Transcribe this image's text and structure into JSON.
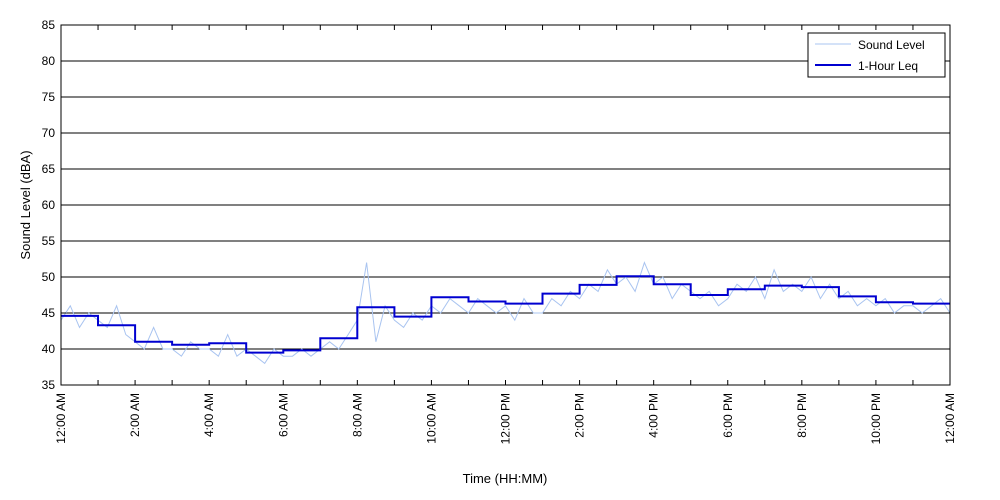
{
  "chart_data": {
    "type": "line",
    "xlabel": "Time (HH:MM)",
    "ylabel": "Sound Level (dBA)",
    "ylim": [
      35,
      85
    ],
    "yticks": [
      35,
      40,
      45,
      50,
      55,
      60,
      65,
      70,
      75,
      80,
      85
    ],
    "xlim_hours": [
      0,
      24
    ],
    "xticks": [
      {
        "hour": 0,
        "label": "12:00 AM"
      },
      {
        "hour": 2,
        "label": "2:00 AM"
      },
      {
        "hour": 4,
        "label": "4:00 AM"
      },
      {
        "hour": 6,
        "label": "6:00 AM"
      },
      {
        "hour": 8,
        "label": "8:00 AM"
      },
      {
        "hour": 10,
        "label": "10:00 AM"
      },
      {
        "hour": 12,
        "label": "12:00 PM"
      },
      {
        "hour": 14,
        "label": "2:00 PM"
      },
      {
        "hour": 16,
        "label": "4:00 PM"
      },
      {
        "hour": 18,
        "label": "6:00 PM"
      },
      {
        "hour": 20,
        "label": "8:00 PM"
      },
      {
        "hour": 22,
        "label": "10:00 PM"
      },
      {
        "hour": 24,
        "label": "12:00 AM"
      }
    ],
    "grid": "horizontal",
    "legend_position": "top-right",
    "series": [
      {
        "name": "Sound Level",
        "color": "#a9c4f0",
        "style": "thin",
        "x_hours": [
          0.0,
          0.25,
          0.5,
          0.75,
          1.0,
          1.25,
          1.5,
          1.75,
          2.0,
          2.25,
          2.5,
          2.75,
          3.0,
          3.25,
          3.5,
          3.75,
          4.0,
          4.25,
          4.5,
          4.75,
          5.0,
          5.25,
          5.5,
          5.75,
          6.0,
          6.25,
          6.5,
          6.75,
          7.0,
          7.25,
          7.5,
          7.75,
          8.0,
          8.25,
          8.5,
          8.75,
          9.0,
          9.25,
          9.5,
          9.75,
          10.0,
          10.25,
          10.5,
          10.75,
          11.0,
          11.25,
          11.5,
          11.75,
          12.0,
          12.25,
          12.5,
          12.75,
          13.0,
          13.25,
          13.5,
          13.75,
          14.0,
          14.25,
          14.5,
          14.75,
          15.0,
          15.25,
          15.5,
          15.75,
          16.0,
          16.25,
          16.5,
          16.75,
          17.0,
          17.25,
          17.5,
          17.75,
          18.0,
          18.25,
          18.5,
          18.75,
          19.0,
          19.25,
          19.5,
          19.75,
          20.0,
          20.25,
          20.5,
          20.75,
          21.0,
          21.25,
          21.5,
          21.75,
          22.0,
          22.25,
          22.5,
          22.75,
          23.0,
          23.25,
          23.5,
          23.75,
          24.0
        ],
        "values": [
          44,
          46,
          43,
          45,
          44,
          43,
          46,
          42,
          41,
          40,
          43,
          40,
          40,
          39,
          41,
          40,
          40,
          39,
          42,
          39,
          40,
          39,
          38,
          40,
          39,
          39,
          40,
          39,
          40,
          41,
          40,
          42,
          44,
          52,
          41,
          46,
          44,
          43,
          45,
          44,
          46,
          45,
          47,
          46,
          45,
          47,
          46,
          45,
          46,
          44,
          47,
          45,
          45,
          47,
          46,
          48,
          47,
          49,
          48,
          51,
          49,
          50,
          48,
          52,
          49,
          50,
          47,
          49,
          48,
          47,
          48,
          46,
          47,
          49,
          48,
          50,
          47,
          51,
          48,
          49,
          48,
          50,
          47,
          49,
          47,
          48,
          46,
          47,
          46,
          47,
          45,
          46,
          46,
          45,
          46,
          47,
          45
        ]
      },
      {
        "name": "1-Hour Leq",
        "color": "#0000d0",
        "style": "step",
        "leq_by_hour": [
          44.6,
          43.3,
          41.0,
          40.6,
          40.8,
          39.5,
          39.8,
          41.5,
          45.8,
          44.5,
          47.2,
          46.6,
          46.3,
          47.7,
          48.9,
          50.1,
          49.0,
          47.5,
          48.3,
          48.8,
          48.6,
          47.3,
          46.5,
          46.3
        ]
      }
    ]
  }
}
